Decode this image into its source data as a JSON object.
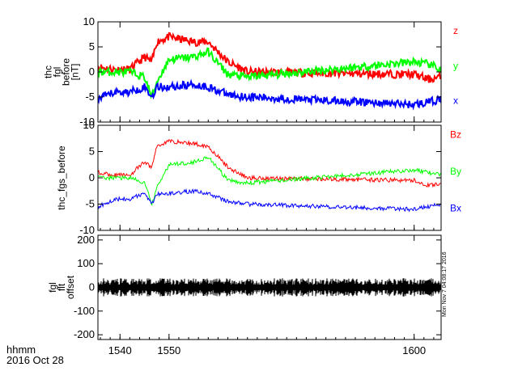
{
  "footer": {
    "line1": "hhmm",
    "line2": "2016 Oct 28"
  },
  "timestamp": "Mon Nov  7 04:08:17 2016",
  "chart_data": [
    {
      "type": "line",
      "ylabel": [
        "thc",
        "fgl",
        "before",
        "[nT]"
      ],
      "ylim": [
        -10,
        10
      ],
      "yticks": [
        -10,
        -5,
        0,
        5,
        10
      ],
      "xlim": [
        1535.5,
        1605.5
      ],
      "x": [
        1535.5,
        1539,
        1542,
        1545,
        1546.5,
        1547.5,
        1550,
        1555,
        1558,
        1562,
        1566,
        1600,
        1603,
        1605.5
      ],
      "series": [
        {
          "name": "z",
          "color": "#ff0000",
          "values": [
            1,
            0.5,
            0.5,
            3,
            2,
            6,
            7,
            6,
            6,
            2,
            0,
            -0.5,
            -1.5,
            -1
          ]
        },
        {
          "name": "y",
          "color": "#00ff00",
          "values": [
            0,
            0,
            0,
            -1,
            -5,
            -2,
            2.5,
            3,
            4,
            -0.5,
            -1,
            2,
            1.5,
            0.5
          ]
        },
        {
          "name": "x",
          "color": "#0000ff",
          "values": [
            -5.5,
            -4,
            -4,
            -3,
            -5,
            -3,
            -3,
            -2.5,
            -3,
            -4.5,
            -5,
            -6.5,
            -6,
            -5.5
          ]
        }
      ]
    },
    {
      "type": "line",
      "ylabel": [
        "thc_fgs_before"
      ],
      "ylim": [
        -10,
        10
      ],
      "yticks": [
        -10,
        -5,
        0,
        5,
        10
      ],
      "xlim": [
        1535.5,
        1605.5
      ],
      "x": [
        1535.5,
        1539,
        1542,
        1545,
        1546.5,
        1547.5,
        1550,
        1555,
        1558,
        1562,
        1566,
        1600,
        1603,
        1605.5
      ],
      "series": [
        {
          "name": "Bz",
          "color": "#ff0000",
          "values": [
            1,
            0.5,
            0.5,
            3,
            2,
            6,
            7,
            6.5,
            6,
            2,
            0,
            -0.5,
            -1.5,
            -1
          ]
        },
        {
          "name": "By",
          "color": "#00ff00",
          "values": [
            0,
            0,
            0,
            -1,
            -5,
            -2,
            2.5,
            3,
            4,
            -0.5,
            -1,
            1.5,
            1,
            0.5
          ]
        },
        {
          "name": "Bx",
          "color": "#0000ff",
          "values": [
            -5.5,
            -4,
            -4,
            -3,
            -5,
            -3,
            -3,
            -2.5,
            -3,
            -4.5,
            -5,
            -6,
            -5.5,
            -5
          ]
        }
      ]
    },
    {
      "type": "line",
      "ylabel": [
        "fgl",
        "flt",
        "offset"
      ],
      "ylim": [
        -220,
        220
      ],
      "yticks": [
        -200,
        -100,
        0,
        100,
        200
      ],
      "xlim": [
        1535.5,
        1605.5
      ],
      "xticks": [
        1540,
        1550,
        1600
      ],
      "xticklabels": [
        "1540",
        "1550",
        "1600"
      ],
      "series": [
        {
          "name": "",
          "color": "#000000",
          "noise_amplitude": 8,
          "values": [
            0
          ]
        }
      ]
    }
  ]
}
